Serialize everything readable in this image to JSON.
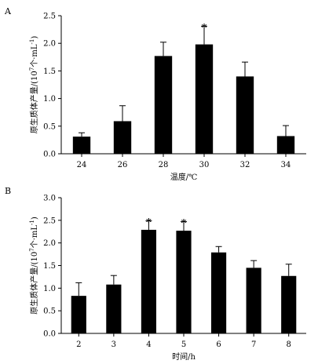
{
  "chart_data": [
    {
      "panel": "A",
      "type": "bar",
      "title": "",
      "xlabel": "温度/℃",
      "ylabel_main": "原生质体产量/(10",
      "ylabel_sup": "7",
      "ylabel_rest": "个·mL",
      "ylabel_sup2": "-1",
      "ylabel_end": ")",
      "categories": [
        "24",
        "26",
        "28",
        "30",
        "32",
        "34"
      ],
      "values": [
        0.31,
        0.59,
        1.77,
        1.98,
        1.4,
        0.32
      ],
      "errors": [
        0.07,
        0.28,
        0.25,
        0.33,
        0.26,
        0.19
      ],
      "significant": [
        false,
        false,
        false,
        true,
        false,
        false
      ],
      "significance_marker": "*",
      "ylim": [
        0.0,
        2.5
      ],
      "yticks": [
        "0.0",
        "0.5",
        "1.0",
        "1.5",
        "2.0",
        "2.5"
      ],
      "grid": false,
      "bar_color": "#000000"
    },
    {
      "panel": "B",
      "type": "bar",
      "title": "",
      "xlabel": "时间/h",
      "ylabel_main": "原生质体产量/(10",
      "ylabel_sup": "7",
      "ylabel_rest": "个·mL",
      "ylabel_sup2": "-1",
      "ylabel_end": ")",
      "categories": [
        "2",
        "3",
        "4",
        "5",
        "6",
        "7",
        "8"
      ],
      "values": [
        0.83,
        1.08,
        2.29,
        2.27,
        1.79,
        1.45,
        1.27
      ],
      "errors": [
        0.29,
        0.2,
        0.2,
        0.2,
        0.13,
        0.16,
        0.26
      ],
      "significant": [
        false,
        false,
        true,
        true,
        false,
        false,
        false
      ],
      "significance_marker": "*",
      "ylim": [
        0.0,
        3.0
      ],
      "yticks": [
        "0.0",
        "0.5",
        "1.0",
        "1.5",
        "2.0",
        "2.5",
        "3.0"
      ],
      "grid": false,
      "bar_color": "#000000"
    }
  ]
}
